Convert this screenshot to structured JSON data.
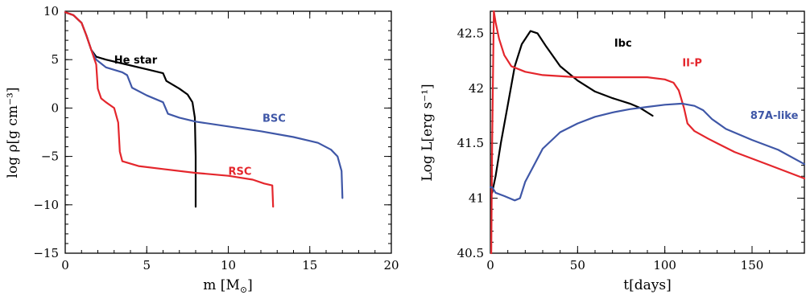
{
  "colors": {
    "black": "#000000",
    "red": "#e4262c",
    "blue": "#3f57a7"
  },
  "chart_data": [
    {
      "type": "line",
      "xlabel": "m [M",
      "xlabel_sub": "⊙",
      "xlabel_close": "]",
      "ylabel": "log ρ[g cm⁻³]",
      "xlim": [
        0,
        20
      ],
      "ylim": [
        -15,
        10
      ],
      "xticks": [
        0,
        5,
        10,
        15,
        20
      ],
      "yticks": [
        -15,
        -10,
        -5,
        0,
        5,
        10
      ],
      "series": [
        {
          "name": "He star",
          "color": "#000000",
          "label_at": [
            3.0,
            4.6
          ],
          "points": [
            [
              0,
              9.9
            ],
            [
              0.5,
              9.6
            ],
            [
              1.0,
              8.8
            ],
            [
              1.3,
              7.5
            ],
            [
              1.6,
              6.0
            ],
            [
              1.9,
              5.3
            ],
            [
              2.5,
              5.0
            ],
            [
              3.5,
              4.6
            ],
            [
              5.0,
              4.0
            ],
            [
              6.0,
              3.6
            ],
            [
              6.2,
              2.8
            ],
            [
              7.0,
              2.0
            ],
            [
              7.5,
              1.4
            ],
            [
              7.8,
              0.6
            ],
            [
              7.95,
              -1.0
            ],
            [
              8.0,
              -5.0
            ],
            [
              8.0,
              -10.2
            ]
          ]
        },
        {
          "name": "BSC",
          "color": "#3f57a7",
          "label_at": [
            12.1,
            -1.4
          ],
          "points": [
            [
              0,
              9.9
            ],
            [
              0.5,
              9.6
            ],
            [
              1.0,
              8.8
            ],
            [
              1.3,
              7.5
            ],
            [
              1.6,
              6.0
            ],
            [
              1.9,
              5.0
            ],
            [
              2.5,
              4.2
            ],
            [
              3.5,
              3.7
            ],
            [
              3.8,
              3.4
            ],
            [
              4.1,
              2.1
            ],
            [
              5.0,
              1.3
            ],
            [
              6.0,
              0.6
            ],
            [
              6.3,
              -0.6
            ],
            [
              7.0,
              -1.0
            ],
            [
              8.0,
              -1.4
            ],
            [
              10.0,
              -1.9
            ],
            [
              12.0,
              -2.4
            ],
            [
              14.0,
              -3.0
            ],
            [
              15.5,
              -3.6
            ],
            [
              16.3,
              -4.3
            ],
            [
              16.7,
              -5.0
            ],
            [
              16.95,
              -6.5
            ],
            [
              17.0,
              -9.3
            ]
          ]
        },
        {
          "name": "RSC",
          "color": "#e4262c",
          "label_at": [
            10.0,
            -6.9
          ],
          "points": [
            [
              0,
              9.9
            ],
            [
              0.5,
              9.6
            ],
            [
              1.0,
              8.8
            ],
            [
              1.3,
              7.5
            ],
            [
              1.6,
              6.0
            ],
            [
              1.9,
              4.5
            ],
            [
              2.0,
              2.0
            ],
            [
              2.2,
              1.0
            ],
            [
              2.5,
              0.6
            ],
            [
              3.0,
              0.0
            ],
            [
              3.25,
              -1.5
            ],
            [
              3.35,
              -4.5
            ],
            [
              3.5,
              -5.5
            ],
            [
              4.5,
              -6.0
            ],
            [
              6.0,
              -6.3
            ],
            [
              8.0,
              -6.7
            ],
            [
              10.0,
              -7.0
            ],
            [
              11.5,
              -7.4
            ],
            [
              12.2,
              -7.8
            ],
            [
              12.7,
              -8.0
            ],
            [
              12.75,
              -10.2
            ]
          ]
        }
      ]
    },
    {
      "type": "line",
      "xlabel": "t[days]",
      "ylabel": "Log L[erg s⁻¹]",
      "xlim": [
        0,
        180
      ],
      "ylim": [
        40.5,
        42.7
      ],
      "xticks": [
        0,
        50,
        100,
        150
      ],
      "yticks": [
        40.5,
        41,
        41.5,
        42,
        42.5
      ],
      "series": [
        {
          "name": "Ibc",
          "color": "#000000",
          "label_at": [
            71,
            42.38
          ],
          "points": [
            [
              1,
              41.05
            ],
            [
              3,
              41.2
            ],
            [
              6,
              41.5
            ],
            [
              10,
              41.85
            ],
            [
              14,
              42.2
            ],
            [
              18,
              42.4
            ],
            [
              23,
              42.52
            ],
            [
              27,
              42.5
            ],
            [
              32,
              42.38
            ],
            [
              40,
              42.2
            ],
            [
              50,
              42.07
            ],
            [
              60,
              41.97
            ],
            [
              70,
              41.91
            ],
            [
              80,
              41.86
            ],
            [
              86,
              41.82
            ],
            [
              93,
              41.75
            ]
          ]
        },
        {
          "name": "II-P",
          "color": "#e4262c",
          "label_at": [
            110,
            42.2
          ],
          "points": [
            [
              0.5,
              40.5
            ],
            [
              1,
              41.5
            ],
            [
              2,
              42.7
            ],
            [
              3,
              42.6
            ],
            [
              5,
              42.45
            ],
            [
              8,
              42.3
            ],
            [
              12,
              42.2
            ],
            [
              20,
              42.15
            ],
            [
              30,
              42.12
            ],
            [
              50,
              42.1
            ],
            [
              70,
              42.1
            ],
            [
              90,
              42.1
            ],
            [
              100,
              42.08
            ],
            [
              105,
              42.05
            ],
            [
              108,
              41.98
            ],
            [
              111,
              41.82
            ],
            [
              113,
              41.68
            ],
            [
              117,
              41.61
            ],
            [
              125,
              41.54
            ],
            [
              140,
              41.42
            ],
            [
              160,
              41.3
            ],
            [
              180,
              41.18
            ]
          ]
        },
        {
          "name": "87A-like",
          "color": "#3f57a7",
          "label_at": [
            149,
            41.72
          ],
          "points": [
            [
              0,
              41.1
            ],
            [
              1,
              41.1
            ],
            [
              3,
              41.05
            ],
            [
              8,
              41.02
            ],
            [
              14,
              40.98
            ],
            [
              17,
              41.0
            ],
            [
              20,
              41.15
            ],
            [
              25,
              41.3
            ],
            [
              30,
              41.45
            ],
            [
              40,
              41.6
            ],
            [
              50,
              41.68
            ],
            [
              60,
              41.74
            ],
            [
              70,
              41.78
            ],
            [
              80,
              41.81
            ],
            [
              90,
              41.83
            ],
            [
              100,
              41.85
            ],
            [
              110,
              41.86
            ],
            [
              117,
              41.84
            ],
            [
              122,
              41.8
            ],
            [
              127,
              41.72
            ],
            [
              135,
              41.63
            ],
            [
              150,
              41.53
            ],
            [
              165,
              41.44
            ],
            [
              180,
              41.31
            ]
          ]
        }
      ]
    }
  ]
}
